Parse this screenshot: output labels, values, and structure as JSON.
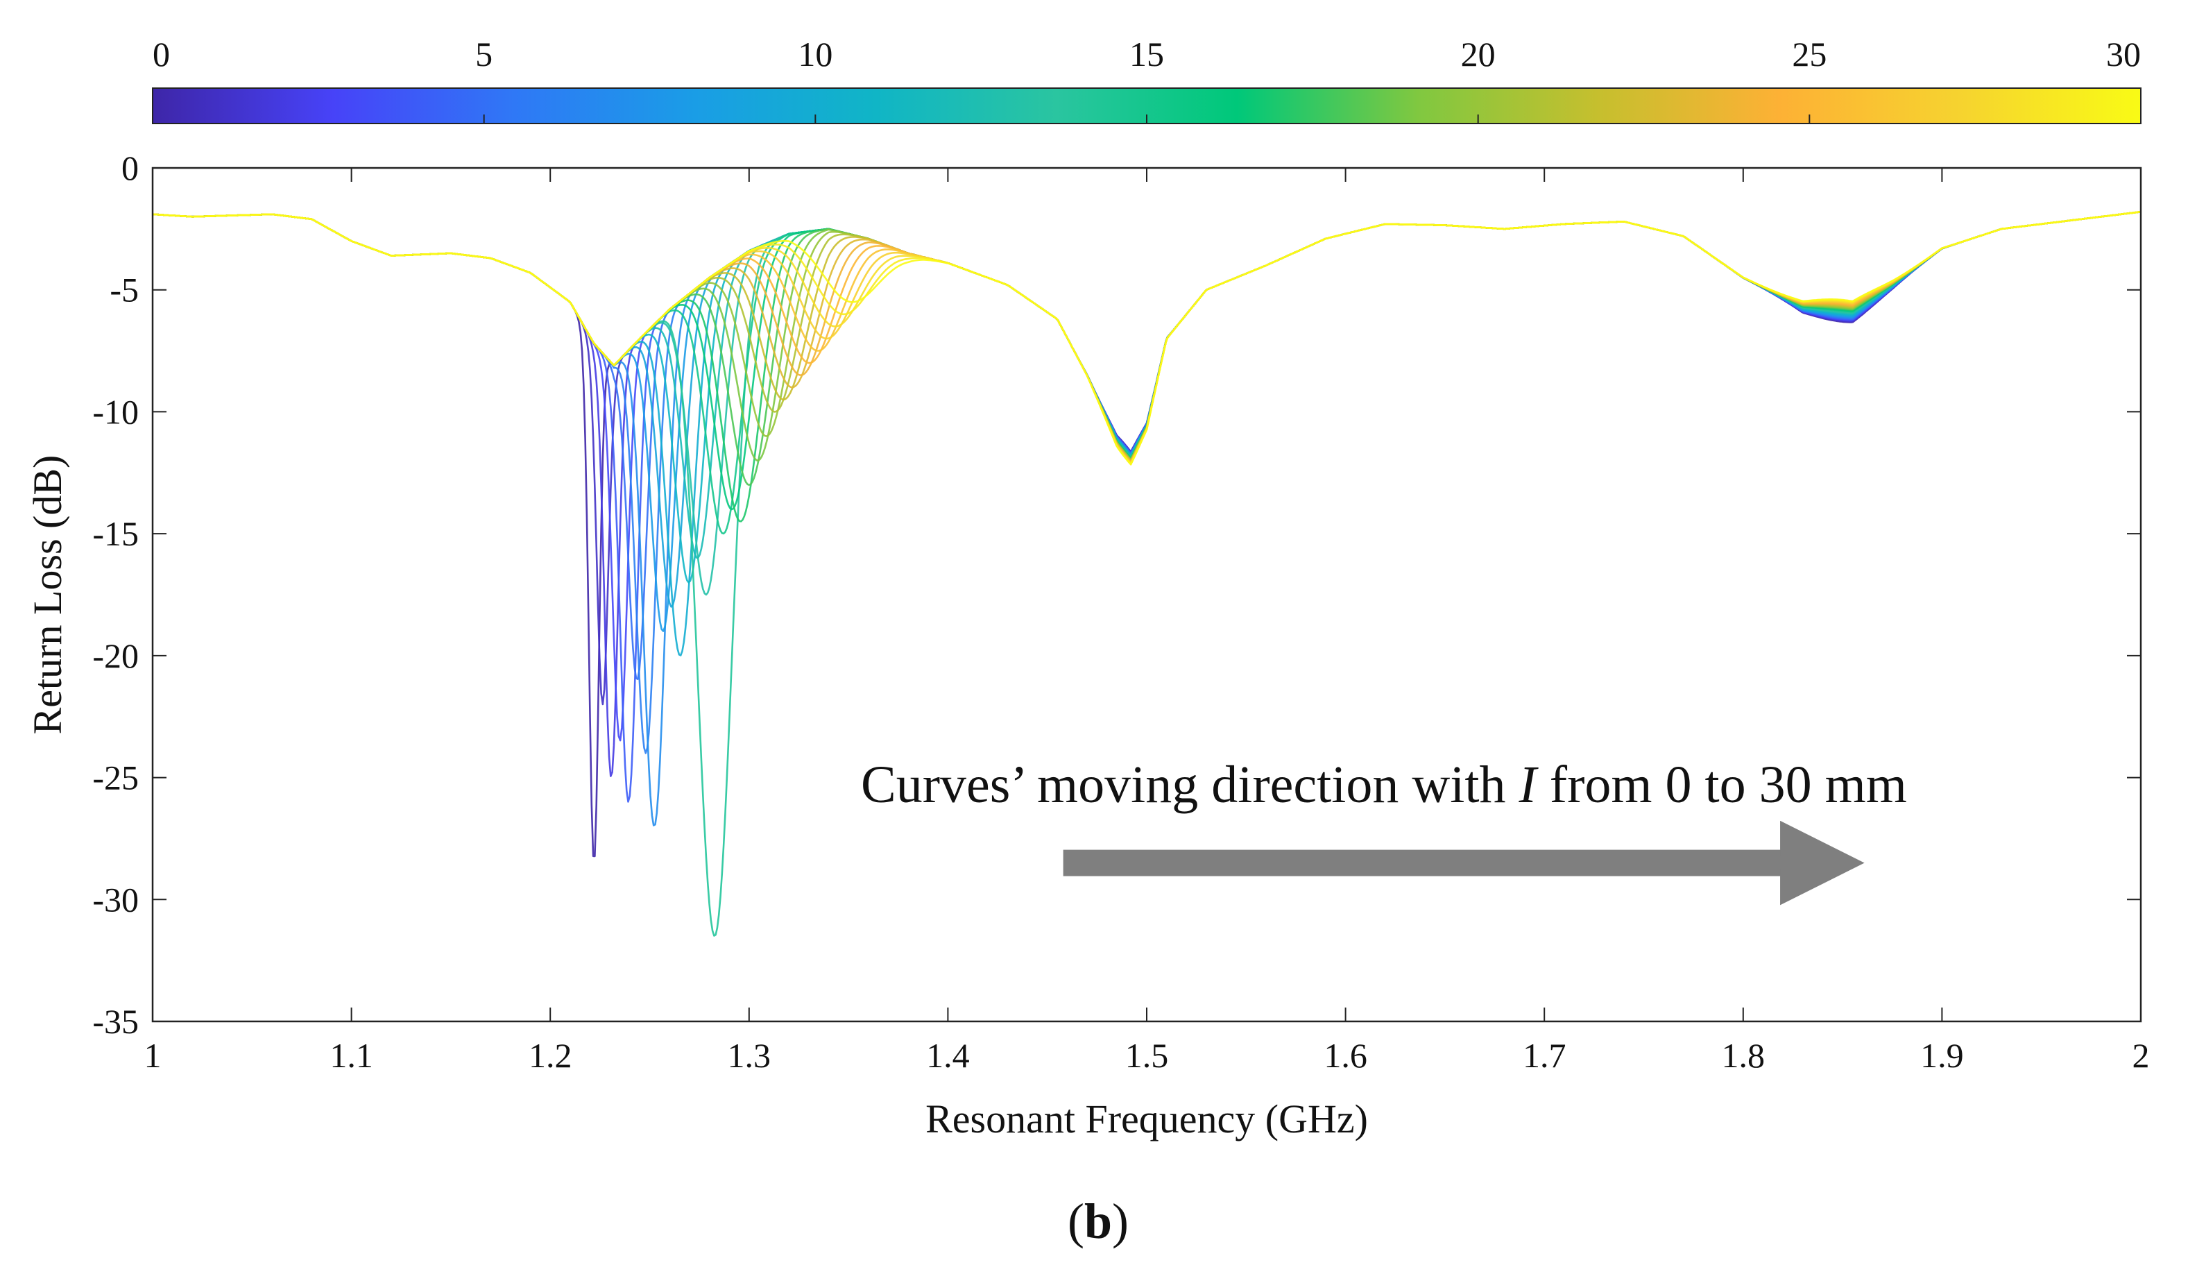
{
  "chart_data": {
    "type": "line",
    "title": "",
    "xlabel": "Resonant Frequency (GHz)",
    "ylabel": "Return Loss (dB)",
    "xlim": [
      1,
      2
    ],
    "ylim": [
      -35,
      0
    ],
    "x_ticks": [
      {
        "value": 1.0,
        "label": "1"
      },
      {
        "value": 1.1,
        "label": "1.1"
      },
      {
        "value": 1.2,
        "label": "1.2"
      },
      {
        "value": 1.3,
        "label": "1.3"
      },
      {
        "value": 1.4,
        "label": "1.4"
      },
      {
        "value": 1.5,
        "label": "1.5"
      },
      {
        "value": 1.6,
        "label": "1.6"
      },
      {
        "value": 1.7,
        "label": "1.7"
      },
      {
        "value": 1.8,
        "label": "1.8"
      },
      {
        "value": 1.9,
        "label": "1.9"
      },
      {
        "value": 2.0,
        "label": "2"
      }
    ],
    "y_ticks": [
      {
        "value": 0,
        "label": "0"
      },
      {
        "value": -5,
        "label": "-5"
      },
      {
        "value": -10,
        "label": "-10"
      },
      {
        "value": -15,
        "label": "-15"
      },
      {
        "value": -20,
        "label": "-20"
      },
      {
        "value": -25,
        "label": "-25"
      },
      {
        "value": -30,
        "label": "-30"
      },
      {
        "value": -35,
        "label": "-35"
      }
    ],
    "grid": false,
    "colorbar": {
      "range": [
        0,
        30
      ],
      "ticks": [
        {
          "value": 0,
          "label": "0"
        },
        {
          "value": 5,
          "label": "5"
        },
        {
          "value": 10,
          "label": "10"
        },
        {
          "value": 15,
          "label": "15"
        },
        {
          "value": 20,
          "label": "20"
        },
        {
          "value": 25,
          "label": "25"
        },
        {
          "value": 30,
          "label": "30"
        }
      ],
      "colormap": [
        "#3e26a8",
        "#4743f8",
        "#2f78f6",
        "#1a9de6",
        "#10b5c6",
        "#2ac5a0",
        "#00c87a",
        "#80c840",
        "#c6bf2e",
        "#fdb135",
        "#f6d32f",
        "#f9fb15"
      ]
    },
    "series_parameter": "I (mm)",
    "series_count": 31,
    "parameter_step": 1,
    "shared_curve": [
      [
        1.0,
        -1.9
      ],
      [
        1.02,
        -2.0
      ],
      [
        1.04,
        -1.95
      ],
      [
        1.06,
        -1.9
      ],
      [
        1.08,
        -2.1
      ],
      [
        1.1,
        -3.0
      ],
      [
        1.12,
        -3.6
      ],
      [
        1.15,
        -3.5
      ],
      [
        1.17,
        -3.7
      ],
      [
        1.19,
        -4.3
      ],
      [
        1.21,
        -5.5
      ],
      [
        1.222,
        -7.2
      ],
      [
        1.232,
        -8.1
      ],
      [
        1.245,
        -7.0
      ],
      [
        1.26,
        -5.8
      ],
      [
        1.28,
        -4.5
      ],
      [
        1.3,
        -3.4
      ],
      [
        1.32,
        -2.7
      ],
      [
        1.34,
        -2.5
      ],
      [
        1.36,
        -2.9
      ],
      [
        1.38,
        -3.5
      ],
      [
        1.4,
        -3.9
      ],
      [
        1.43,
        -4.8
      ],
      [
        1.455,
        -6.2
      ],
      [
        1.47,
        -8.5
      ],
      [
        1.485,
        -11.2
      ],
      [
        1.492,
        -11.9
      ],
      [
        1.5,
        -10.6
      ],
      [
        1.51,
        -7.0
      ],
      [
        1.53,
        -5.0
      ],
      [
        1.56,
        -4.0
      ],
      [
        1.59,
        -2.9
      ],
      [
        1.62,
        -2.3
      ],
      [
        1.65,
        -2.35
      ],
      [
        1.68,
        -2.5
      ],
      [
        1.71,
        -2.3
      ],
      [
        1.74,
        -2.2
      ],
      [
        1.77,
        -2.8
      ],
      [
        1.8,
        -4.5
      ],
      [
        1.83,
        -5.7
      ],
      [
        1.855,
        -5.9
      ],
      [
        1.875,
        -4.8
      ],
      [
        1.9,
        -3.3
      ],
      [
        1.93,
        -2.5
      ],
      [
        1.96,
        -2.2
      ],
      [
        2.0,
        -1.8
      ]
    ],
    "first_dip": {
      "frequency_min": 1.222,
      "frequency_max": 1.352,
      "depth_by_parameter": [
        -28.5,
        -22,
        -25,
        -23.5,
        -26,
        -21,
        -24,
        -27,
        -19,
        -18,
        -20,
        -17,
        -16,
        -17.5,
        -31.5,
        -15,
        -14,
        -14.5,
        -13,
        -12,
        -11,
        -10,
        -9.5,
        -9,
        -8.5,
        -8,
        -7.5,
        -7,
        -6.5,
        -6,
        -5.5
      ]
    },
    "third_dip_shallowest": -5.0,
    "annotations": [
      {
        "text_before": "Curves’ moving direction with ",
        "symbol": "I",
        "text_after": " from 0 to 30 mm",
        "arrow_from_x": 1.458,
        "arrow_to_x": 1.858,
        "arrow_y": -28.5,
        "arrow_color": "#7f7f7f"
      }
    ],
    "caption": {
      "open": "(",
      "letter": "b",
      "close": ")"
    }
  }
}
